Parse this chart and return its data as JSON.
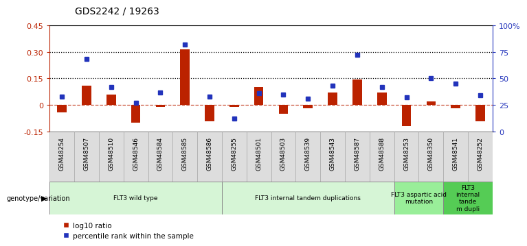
{
  "title": "GDS2242 / 19263",
  "samples": [
    "GSM48254",
    "GSM48507",
    "GSM48510",
    "GSM48546",
    "GSM48584",
    "GSM48585",
    "GSM48586",
    "GSM48255",
    "GSM48501",
    "GSM48503",
    "GSM48539",
    "GSM48543",
    "GSM48587",
    "GSM48588",
    "GSM48253",
    "GSM48350",
    "GSM48541",
    "GSM48252"
  ],
  "log10_ratio": [
    -0.04,
    0.11,
    0.06,
    -0.1,
    -0.01,
    0.315,
    -0.09,
    -0.01,
    0.1,
    -0.05,
    -0.02,
    0.07,
    0.145,
    0.07,
    -0.12,
    0.02,
    -0.02,
    -0.09
  ],
  "percentile_rank": [
    33,
    68,
    42,
    27,
    37,
    82,
    33,
    12,
    36,
    35,
    31,
    43,
    72,
    42,
    32,
    50,
    45,
    34
  ],
  "groups": [
    {
      "label": "FLT3 wild type",
      "start": 0,
      "end": 7,
      "color": "#d6f5d6"
    },
    {
      "label": "FLT3 internal tandem duplications",
      "start": 7,
      "end": 14,
      "color": "#d6f5d6"
    },
    {
      "label": "FLT3 aspartic acid\nmutation",
      "start": 14,
      "end": 16,
      "color": "#99ee99"
    },
    {
      "label": "FLT3\ninternal\ntande\nm dupli",
      "start": 16,
      "end": 18,
      "color": "#55cc55"
    }
  ],
  "ylim_left": [
    -0.15,
    0.45
  ],
  "ylim_right": [
    0,
    100
  ],
  "yticks_left": [
    -0.15,
    0.0,
    0.15,
    0.3,
    0.45
  ],
  "ytick_labels_left": [
    "-0.15",
    "0",
    "0.15",
    "0.30",
    "0.45"
  ],
  "yticks_right": [
    0,
    25,
    50,
    75,
    100
  ],
  "ytick_labels_right": [
    "0",
    "25",
    "50",
    "75",
    "100%"
  ],
  "hlines": [
    0.15,
    0.3
  ],
  "bar_color_red": "#bb2200",
  "bar_color_blue": "#2233bb",
  "background_color": "#ffffff",
  "label_box_color": "#dddddd",
  "genotype_label": "genotype/variation",
  "legend_red": "log10 ratio",
  "legend_blue": "percentile rank within the sample"
}
